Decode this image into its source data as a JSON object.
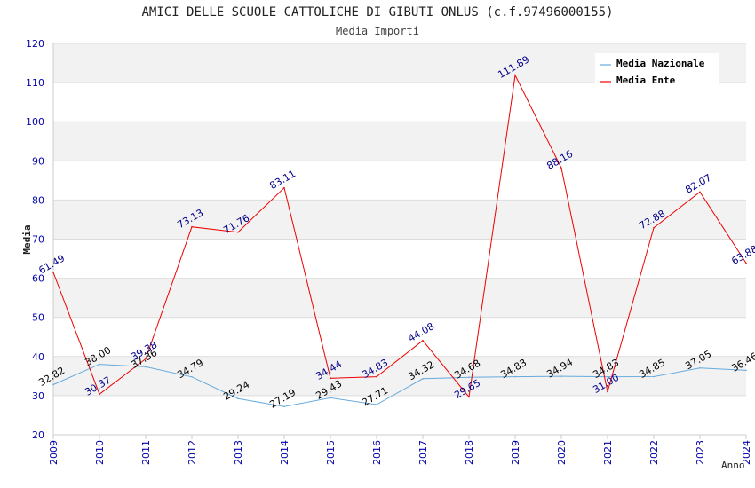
{
  "chart_data": {
    "type": "line",
    "title": "AMICI DELLE SCUOLE CATTOLICHE DI GIBUTI ONLUS (c.f.97496000155)",
    "subtitle": "Media Importi",
    "xlabel": "Anno",
    "ylabel": "Media",
    "x": [
      "2009",
      "2010",
      "2011",
      "2012",
      "2013",
      "2014",
      "2015",
      "2016",
      "2017",
      "2018",
      "2019",
      "2020",
      "2021",
      "2022",
      "2023",
      "2024"
    ],
    "ylim": [
      20,
      120
    ],
    "yticks": [
      "20",
      "30",
      "40",
      "50",
      "60",
      "70",
      "80",
      "90",
      "100",
      "110",
      "120"
    ],
    "grid": true,
    "legend_position": "top-right",
    "series": [
      {
        "name": "Media Nazionale",
        "color": "#66aadd",
        "label_color": "#000000",
        "values": [
          32.82,
          38.0,
          37.36,
          34.79,
          29.24,
          27.19,
          29.43,
          27.71,
          34.32,
          34.68,
          34.83,
          34.94,
          34.83,
          34.85,
          37.05,
          36.46
        ],
        "labels": [
          "32.82",
          "38.00",
          "37.36",
          "34.79",
          "29.24",
          "27.19",
          "29.43",
          "27.71",
          "34.32",
          "34.68",
          "34.83",
          "34.94",
          "34.83",
          "34.85",
          "37.05",
          "36.46"
        ]
      },
      {
        "name": "Media Ente",
        "color": "#ee0000",
        "label_color": "#000088",
        "values": [
          61.49,
          30.37,
          39.38,
          73.13,
          71.76,
          83.11,
          34.44,
          34.83,
          44.08,
          29.65,
          111.89,
          88.16,
          31.0,
          72.88,
          82.07,
          63.88
        ],
        "labels": [
          "61.49",
          "30.37",
          "39.38",
          "73.13",
          "71.76",
          "83.11",
          "34.44",
          "34.83",
          "44.08",
          "29.65",
          "111.89",
          "88.16",
          "31.00",
          "72.88",
          "82.07",
          "63.88"
        ]
      }
    ]
  }
}
